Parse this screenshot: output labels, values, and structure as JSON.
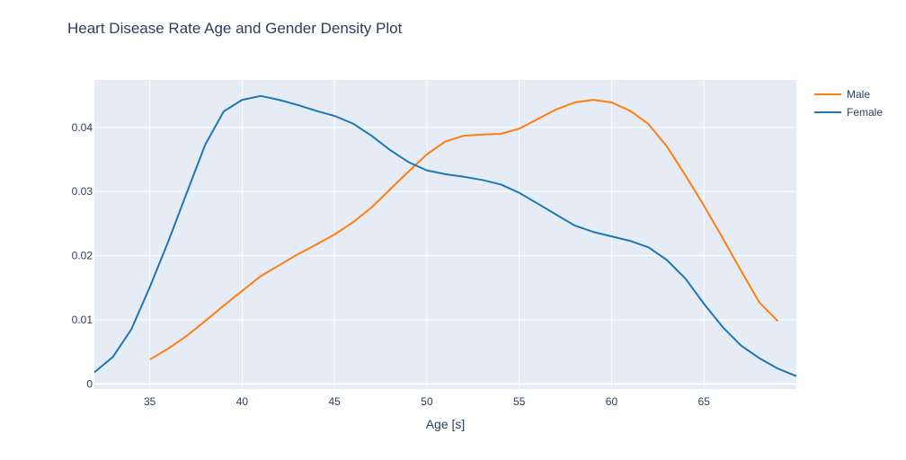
{
  "chart_data": {
    "type": "line",
    "title": "Heart Disease Rate Age and Gender Density Plot",
    "xlabel": "Age [s]",
    "ylabel": "",
    "xlim": [
      32,
      70
    ],
    "ylim": [
      -0.0008,
      0.0474
    ],
    "xticks": [
      35,
      40,
      45,
      50,
      55,
      60,
      65
    ],
    "yticks": [
      0,
      0.01,
      0.02,
      0.03,
      0.04
    ],
    "ytick_labels": [
      "0",
      "0.01",
      "0.02",
      "0.03",
      "0.04"
    ],
    "plot_bgcolor": "#e5ecf6",
    "grid": true,
    "legend_position": "top-right",
    "series": [
      {
        "name": "Male",
        "color": "#ff7f0e",
        "x": [
          35,
          36,
          37,
          38,
          39,
          40,
          41,
          42,
          43,
          44,
          45,
          46,
          47,
          48,
          49,
          50,
          51,
          52,
          53,
          54,
          55,
          56,
          57,
          58,
          59,
          60,
          61,
          62,
          63,
          64,
          65,
          66,
          67,
          68,
          69
        ],
        "y": [
          0.0038,
          0.0055,
          0.0075,
          0.0098,
          0.0122,
          0.0145,
          0.0168,
          0.0185,
          0.0202,
          0.0217,
          0.0233,
          0.0252,
          0.0275,
          0.0303,
          0.0331,
          0.0358,
          0.0378,
          0.0387,
          0.0389,
          0.039,
          0.0398,
          0.0413,
          0.0428,
          0.0439,
          0.0443,
          0.0439,
          0.0426,
          0.0405,
          0.037,
          0.0325,
          0.0278,
          0.0228,
          0.0177,
          0.0127,
          0.0098
        ]
      },
      {
        "name": "Female",
        "color": "#1f77b4",
        "x": [
          32,
          33,
          34,
          35,
          36,
          37,
          38,
          39,
          40,
          41,
          42,
          43,
          44,
          45,
          46,
          47,
          48,
          49,
          50,
          51,
          52,
          53,
          54,
          55,
          56,
          57,
          58,
          59,
          60,
          61,
          62,
          63,
          64,
          65,
          66,
          67,
          68,
          69,
          70
        ],
        "y": [
          0.0018,
          0.0042,
          0.0085,
          0.0151,
          0.0222,
          0.0298,
          0.0373,
          0.0425,
          0.0443,
          0.0449,
          0.0443,
          0.0435,
          0.0426,
          0.0418,
          0.0406,
          0.0387,
          0.0365,
          0.0346,
          0.0333,
          0.0327,
          0.0323,
          0.0318,
          0.0311,
          0.0298,
          0.0281,
          0.0264,
          0.0247,
          0.0237,
          0.023,
          0.0223,
          0.0213,
          0.0193,
          0.0164,
          0.0125,
          0.0089,
          0.006,
          0.004,
          0.0024,
          0.0012
        ]
      }
    ]
  }
}
